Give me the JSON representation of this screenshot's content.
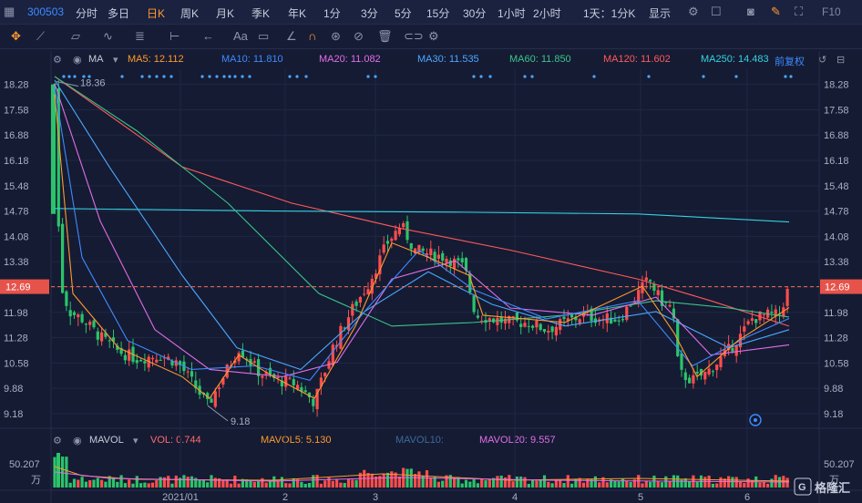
{
  "toolbar": {
    "code": "300503",
    "items": [
      "分时",
      "多日",
      "日K",
      "周K",
      "月K",
      "季K",
      "年K",
      "1分",
      "3分",
      "5分",
      "15分",
      "30分",
      "1小时",
      "2小时",
      "1天：1分K",
      "显示"
    ],
    "active_index": 2,
    "right_label": "F10"
  },
  "drawbar": {
    "icons": [
      "crosshair-icon",
      "line-icon",
      "channel-icon",
      "wave-icon",
      "fib-icon",
      "measure-icon",
      "arrow-icon",
      "text-icon",
      "comment-icon",
      "pen-icon",
      "magnet-icon",
      "lock-icon",
      "hide-icon",
      "trash-icon",
      "link-icon",
      "settings-icon"
    ],
    "text_tool": "Aa"
  },
  "ma_legend": {
    "label": "MA",
    "items": [
      {
        "text": "MA5: 12.112",
        "color": "#ff9a2e"
      },
      {
        "text": "MA10: 11.810",
        "color": "#3d8bff"
      },
      {
        "text": "MA20: 11.082",
        "color": "#e26ee8"
      },
      {
        "text": "MA30: 11.535",
        "color": "#4aa8ff"
      },
      {
        "text": "MA60: 11.850",
        "color": "#3ac48a"
      },
      {
        "text": "MA120: 11.602",
        "color": "#ff5a5a"
      },
      {
        "text": "MA250: 14.483",
        "color": "#34d2e0"
      }
    ],
    "adjust": "前复权"
  },
  "vol_legend": {
    "label": "MAVOL",
    "items": [
      {
        "text": "VOL: 0.744",
        "color": "#ff6b6b"
      },
      {
        "text": "MAVOL5: 5.130",
        "color": "#ff9a2e"
      },
      {
        "text": "MAVOL10:",
        "color": "#3d6a9a"
      },
      {
        "text": "MAVOL20: 9.557",
        "color": "#e26ee8"
      }
    ]
  },
  "chart_data": {
    "type": "candlestick",
    "y_ticks": [
      "18.28",
      "17.58",
      "16.88",
      "16.18",
      "15.48",
      "14.78",
      "14.08",
      "13.38",
      "12.68",
      "11.98",
      "11.28",
      "10.58",
      "9.88",
      "9.18"
    ],
    "ylim": [
      8.85,
      18.7
    ],
    "current_price": "12.69",
    "annotations": {
      "high": "18.36",
      "low": "9.18"
    },
    "x_labels": [
      "2021/01",
      "2",
      "3",
      "4",
      "5",
      "6"
    ],
    "volume_axis": {
      "top": "50.207",
      "unit": "万"
    },
    "series_colors": {
      "up": "#ff4d4d",
      "down": "#2bc46a"
    },
    "watermark": "格隆汇"
  }
}
